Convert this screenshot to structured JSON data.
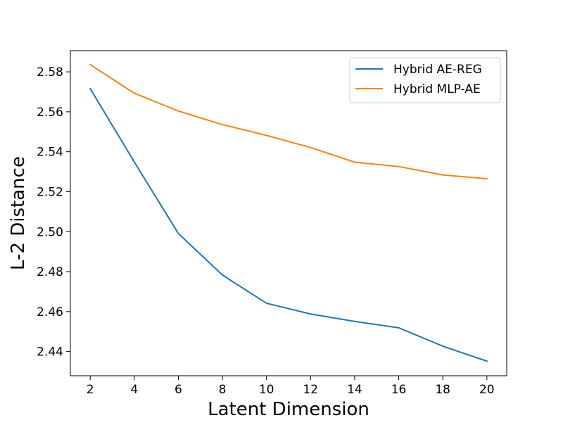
{
  "chart_data": {
    "type": "line",
    "title": "",
    "xlabel": "Latent Dimension",
    "ylabel": "L-2 Distance",
    "x": [
      2,
      4,
      6,
      8,
      10,
      12,
      14,
      16,
      18,
      20
    ],
    "xlim": [
      1.1,
      20.9
    ],
    "ylim": [
      2.4279,
      2.5906
    ],
    "xticks": [
      2,
      4,
      6,
      8,
      10,
      12,
      14,
      16,
      18,
      20
    ],
    "xtick_labels": [
      "2",
      "4",
      "6",
      "8",
      "10",
      "12",
      "14",
      "16",
      "18",
      "20"
    ],
    "yticks": [
      2.44,
      2.46,
      2.48,
      2.5,
      2.52,
      2.54,
      2.56,
      2.58
    ],
    "ytick_labels": [
      "2.44",
      "2.46",
      "2.48",
      "2.50",
      "2.52",
      "2.54",
      "2.56",
      "2.58"
    ],
    "grid": false,
    "legend_position": "top-right",
    "series": [
      {
        "name": "Hybrid AE-REG",
        "color": "#1f77b4",
        "values": [
          2.5716,
          2.5349,
          2.4991,
          2.4783,
          2.4642,
          2.4588,
          2.4551,
          2.4519,
          2.4427,
          2.4352
        ]
      },
      {
        "name": "Hybrid MLP-AE",
        "color": "#ff7f0e",
        "values": [
          2.5836,
          2.5693,
          2.5604,
          2.5536,
          2.5482,
          2.5421,
          2.5348,
          2.5326,
          2.5284,
          2.5265
        ]
      }
    ]
  }
}
